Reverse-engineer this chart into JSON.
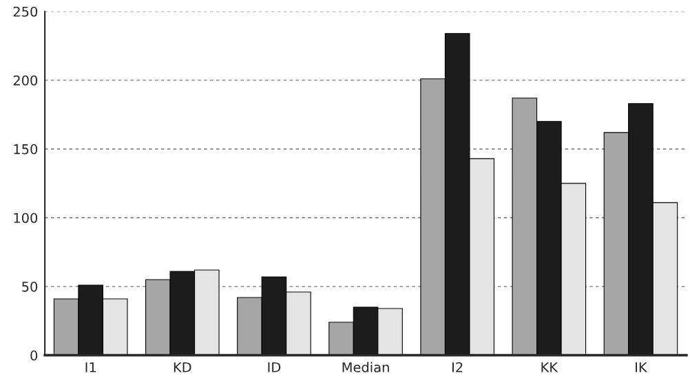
{
  "chart_data": {
    "type": "bar",
    "categories": [
      "I1",
      "KD",
      "ID",
      "Median",
      "I2",
      "KK",
      "IK"
    ],
    "series": [
      {
        "color": "#a6a6a6",
        "values": [
          41,
          55,
          42,
          24,
          201,
          187,
          162
        ]
      },
      {
        "color": "#1c1c1c",
        "values": [
          51,
          61,
          57,
          35,
          234,
          170,
          183
        ]
      },
      {
        "color": "#e4e4e4",
        "values": [
          41,
          62,
          46,
          34,
          143,
          125,
          111
        ]
      }
    ],
    "ylim": [
      0,
      250
    ],
    "yticks": [
      0,
      50,
      100,
      150,
      200,
      250
    ],
    "grid": "y",
    "line_style": "dashed"
  }
}
